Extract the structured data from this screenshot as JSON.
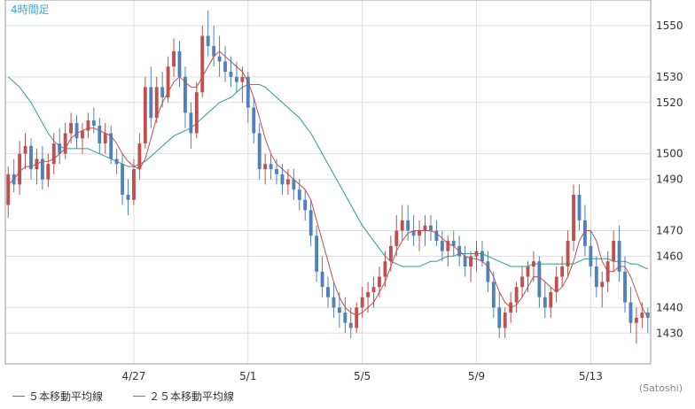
{
  "timeframe": "4時間足",
  "credit": "(Satoshi)",
  "legend": [
    {
      "label": "５本移動平均線",
      "color": "#c0504d"
    },
    {
      "label": "２５本移動平均線",
      "color": "#2e9e86"
    }
  ],
  "colors": {
    "up": "#c0504d",
    "down": "#4f81bd",
    "grid": "#dddddd",
    "axis": "#888888"
  },
  "chart_data": {
    "type": "candlestick",
    "y_ticks": [
      1550,
      1530,
      1520,
      1500,
      1490,
      1470,
      1460,
      1440,
      1430
    ],
    "ylim": [
      1418,
      1560
    ],
    "x_ticks": [
      {
        "label": "4/27",
        "index": 22
      },
      {
        "label": "5/1",
        "index": 42
      },
      {
        "label": "5/5",
        "index": 62
      },
      {
        "label": "5/9",
        "index": 82
      },
      {
        "label": "5/13",
        "index": 102
      }
    ],
    "xlim": [
      -0.5,
      112.5
    ],
    "candles": [
      [
        1480,
        1495,
        1475,
        1492
      ],
      [
        1492,
        1498,
        1485,
        1488
      ],
      [
        1488,
        1505,
        1484,
        1500
      ],
      [
        1500,
        1508,
        1494,
        1503
      ],
      [
        1503,
        1506,
        1490,
        1494
      ],
      [
        1494,
        1502,
        1488,
        1498
      ],
      [
        1498,
        1503,
        1486,
        1490
      ],
      [
        1490,
        1500,
        1487,
        1496
      ],
      [
        1496,
        1508,
        1492,
        1504
      ],
      [
        1504,
        1510,
        1496,
        1500
      ],
      [
        1500,
        1512,
        1498,
        1508
      ],
      [
        1508,
        1516,
        1504,
        1512
      ],
      [
        1512,
        1515,
        1502,
        1506
      ],
      [
        1506,
        1512,
        1500,
        1509
      ],
      [
        1509,
        1516,
        1506,
        1513
      ],
      [
        1513,
        1518,
        1508,
        1511
      ],
      [
        1511,
        1514,
        1500,
        1504
      ],
      [
        1504,
        1512,
        1500,
        1508
      ],
      [
        1508,
        1511,
        1496,
        1498
      ],
      [
        1498,
        1502,
        1492,
        1496
      ],
      [
        1496,
        1500,
        1480,
        1484
      ],
      [
        1484,
        1490,
        1476,
        1482
      ],
      [
        1482,
        1498,
        1480,
        1494
      ],
      [
        1494,
        1508,
        1490,
        1504
      ],
      [
        1504,
        1530,
        1502,
        1526
      ],
      [
        1526,
        1534,
        1510,
        1514
      ],
      [
        1514,
        1530,
        1512,
        1526
      ],
      [
        1526,
        1532,
        1518,
        1522
      ],
      [
        1522,
        1538,
        1520,
        1534
      ],
      [
        1534,
        1545,
        1530,
        1540
      ],
      [
        1540,
        1544,
        1526,
        1530
      ],
      [
        1530,
        1534,
        1510,
        1516
      ],
      [
        1516,
        1520,
        1502,
        1508
      ],
      [
        1508,
        1528,
        1506,
        1524
      ],
      [
        1524,
        1550,
        1522,
        1546
      ],
      [
        1546,
        1556,
        1538,
        1542
      ],
      [
        1542,
        1550,
        1534,
        1538
      ],
      [
        1538,
        1546,
        1530,
        1536
      ],
      [
        1536,
        1542,
        1528,
        1532
      ],
      [
        1532,
        1538,
        1526,
        1530
      ],
      [
        1530,
        1536,
        1524,
        1528
      ],
      [
        1528,
        1534,
        1520,
        1530
      ],
      [
        1530,
        1532,
        1512,
        1518
      ],
      [
        1518,
        1522,
        1504,
        1508
      ],
      [
        1508,
        1512,
        1490,
        1494
      ],
      [
        1494,
        1500,
        1488,
        1496
      ],
      [
        1496,
        1500,
        1490,
        1494
      ],
      [
        1494,
        1498,
        1488,
        1492
      ],
      [
        1492,
        1496,
        1484,
        1488
      ],
      [
        1488,
        1494,
        1484,
        1490
      ],
      [
        1490,
        1494,
        1482,
        1486
      ],
      [
        1486,
        1490,
        1478,
        1482
      ],
      [
        1482,
        1486,
        1474,
        1478
      ],
      [
        1478,
        1482,
        1464,
        1468
      ],
      [
        1468,
        1472,
        1450,
        1454
      ],
      [
        1454,
        1460,
        1444,
        1448
      ],
      [
        1448,
        1452,
        1440,
        1444
      ],
      [
        1444,
        1450,
        1436,
        1440
      ],
      [
        1440,
        1446,
        1432,
        1438
      ],
      [
        1438,
        1444,
        1430,
        1434
      ],
      [
        1434,
        1440,
        1428,
        1432
      ],
      [
        1432,
        1442,
        1430,
        1440
      ],
      [
        1440,
        1448,
        1436,
        1444
      ],
      [
        1444,
        1450,
        1438,
        1446
      ],
      [
        1446,
        1452,
        1440,
        1448
      ],
      [
        1448,
        1456,
        1444,
        1452
      ],
      [
        1452,
        1462,
        1448,
        1458
      ],
      [
        1458,
        1468,
        1454,
        1464
      ],
      [
        1464,
        1476,
        1460,
        1470
      ],
      [
        1470,
        1480,
        1466,
        1474
      ],
      [
        1474,
        1480,
        1466,
        1470
      ],
      [
        1470,
        1476,
        1464,
        1468
      ],
      [
        1468,
        1474,
        1462,
        1470
      ],
      [
        1470,
        1476,
        1464,
        1472
      ],
      [
        1472,
        1476,
        1466,
        1470
      ],
      [
        1470,
        1474,
        1464,
        1466
      ],
      [
        1466,
        1470,
        1458,
        1462
      ],
      [
        1462,
        1468,
        1456,
        1466
      ],
      [
        1466,
        1470,
        1460,
        1464
      ],
      [
        1464,
        1468,
        1456,
        1460
      ],
      [
        1460,
        1464,
        1452,
        1456
      ],
      [
        1456,
        1462,
        1450,
        1460
      ],
      [
        1460,
        1466,
        1454,
        1462
      ],
      [
        1462,
        1466,
        1456,
        1458
      ],
      [
        1458,
        1462,
        1446,
        1450
      ],
      [
        1450,
        1454,
        1436,
        1440
      ],
      [
        1440,
        1446,
        1428,
        1432
      ],
      [
        1432,
        1440,
        1428,
        1438
      ],
      [
        1438,
        1446,
        1434,
        1442
      ],
      [
        1442,
        1450,
        1438,
        1448
      ],
      [
        1448,
        1456,
        1444,
        1452
      ],
      [
        1452,
        1458,
        1446,
        1456
      ],
      [
        1456,
        1462,
        1450,
        1458
      ],
      [
        1458,
        1460,
        1440,
        1444
      ],
      [
        1444,
        1450,
        1436,
        1440
      ],
      [
        1440,
        1448,
        1436,
        1446
      ],
      [
        1446,
        1456,
        1442,
        1452
      ],
      [
        1452,
        1460,
        1448,
        1456
      ],
      [
        1456,
        1470,
        1452,
        1466
      ],
      [
        1466,
        1488,
        1462,
        1484
      ],
      [
        1484,
        1488,
        1470,
        1474
      ],
      [
        1474,
        1480,
        1460,
        1464
      ],
      [
        1464,
        1470,
        1452,
        1456
      ],
      [
        1456,
        1460,
        1444,
        1448
      ],
      [
        1448,
        1454,
        1440,
        1450
      ],
      [
        1450,
        1462,
        1446,
        1458
      ],
      [
        1458,
        1470,
        1454,
        1466
      ],
      [
        1466,
        1472,
        1450,
        1454
      ],
      [
        1454,
        1460,
        1438,
        1442
      ],
      [
        1442,
        1448,
        1430,
        1434
      ],
      [
        1434,
        1440,
        1426,
        1436
      ],
      [
        1436,
        1442,
        1432,
        1438
      ],
      [
        1438,
        1440,
        1430,
        1436
      ]
    ],
    "ma5": [
      1488,
      1490,
      1493,
      1495,
      1495,
      1496,
      1497,
      1497,
      1498,
      1500,
      1502,
      1506,
      1508,
      1509,
      1510,
      1510,
      1509,
      1508,
      1507,
      1504,
      1500,
      1497,
      1495,
      1494,
      1498,
      1506,
      1514,
      1520,
      1524,
      1528,
      1530,
      1528,
      1526,
      1526,
      1530,
      1534,
      1538,
      1540,
      1538,
      1536,
      1534,
      1532,
      1528,
      1522,
      1514,
      1506,
      1500,
      1496,
      1494,
      1492,
      1490,
      1488,
      1486,
      1482,
      1474,
      1466,
      1458,
      1450,
      1444,
      1440,
      1438,
      1437,
      1438,
      1440,
      1442,
      1446,
      1450,
      1456,
      1462,
      1466,
      1469,
      1470,
      1470,
      1470,
      1470,
      1469,
      1467,
      1465,
      1464,
      1462,
      1460,
      1459,
      1459,
      1458,
      1456,
      1452,
      1446,
      1442,
      1440,
      1441,
      1444,
      1448,
      1452,
      1452,
      1450,
      1448,
      1446,
      1448,
      1452,
      1458,
      1466,
      1470,
      1470,
      1466,
      1458,
      1454,
      1454,
      1456,
      1456,
      1452,
      1446,
      1440,
      1436
    ],
    "ma25": [
      1530,
      1528,
      1526,
      1523,
      1520,
      1516,
      1512,
      1508,
      1505,
      1503,
      1502,
      1502,
      1502,
      1502,
      1502,
      1501,
      1500,
      1499,
      1498,
      1497,
      1496,
      1495,
      1495,
      1496,
      1497,
      1499,
      1501,
      1503,
      1505,
      1507,
      1508,
      1509,
      1510,
      1512,
      1514,
      1516,
      1518,
      1520,
      1521,
      1522,
      1524,
      1526,
      1527,
      1527,
      1527,
      1526,
      1524,
      1522,
      1520,
      1518,
      1516,
      1514,
      1511,
      1508,
      1504,
      1500,
      1496,
      1492,
      1488,
      1484,
      1480,
      1476,
      1472,
      1469,
      1466,
      1463,
      1460,
      1458,
      1457,
      1456,
      1456,
      1456,
      1456,
      1457,
      1458,
      1458,
      1459,
      1460,
      1460,
      1461,
      1461,
      1461,
      1461,
      1461,
      1460,
      1459,
      1458,
      1457,
      1456,
      1456,
      1456,
      1456,
      1457,
      1457,
      1457,
      1457,
      1457,
      1457,
      1457,
      1457,
      1458,
      1459,
      1459,
      1459,
      1459,
      1459,
      1458,
      1458,
      1458,
      1457,
      1457,
      1456,
      1455
    ]
  }
}
